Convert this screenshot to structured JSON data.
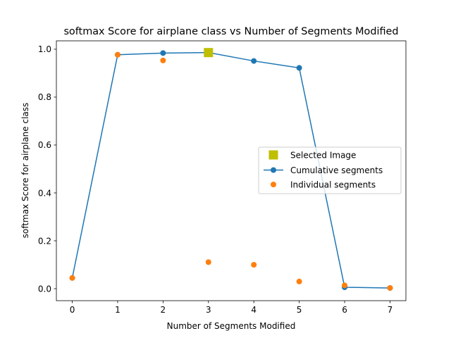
{
  "chart_data": {
    "type": "scatter",
    "title": "softmax Score for airplane class vs Number of Segments Modified",
    "xlabel": "Number of Segments Modified",
    "ylabel": "softmax Score for airplane class",
    "xlim": [
      -0.35,
      7.35
    ],
    "ylim": [
      -0.05,
      1.035
    ],
    "xticks": [
      "0",
      "1",
      "2",
      "3",
      "4",
      "5",
      "6",
      "7"
    ],
    "yticks": [
      "0.0",
      "0.2",
      "0.4",
      "0.6",
      "0.8",
      "1.0"
    ],
    "grid": false,
    "legend_position": "center-right",
    "series": [
      {
        "name": "Selected Image",
        "kind": "marker-square",
        "color": "#bfbf00",
        "x": [
          3
        ],
        "y": [
          0.986
        ]
      },
      {
        "name": "Cumulative segments",
        "kind": "line-marker",
        "color": "#1f77b4",
        "x": [
          0,
          1,
          2,
          3,
          4,
          5,
          6,
          7
        ],
        "y": [
          0.045,
          0.977,
          0.984,
          0.986,
          0.951,
          0.922,
          0.006,
          0.003
        ]
      },
      {
        "name": "Individual segments",
        "kind": "marker",
        "color": "#ff7f0e",
        "x": [
          0,
          1,
          2,
          3,
          4,
          5,
          6,
          7
        ],
        "y": [
          0.045,
          0.977,
          0.953,
          0.111,
          0.1,
          0.03,
          0.014,
          0.003
        ]
      }
    ]
  }
}
